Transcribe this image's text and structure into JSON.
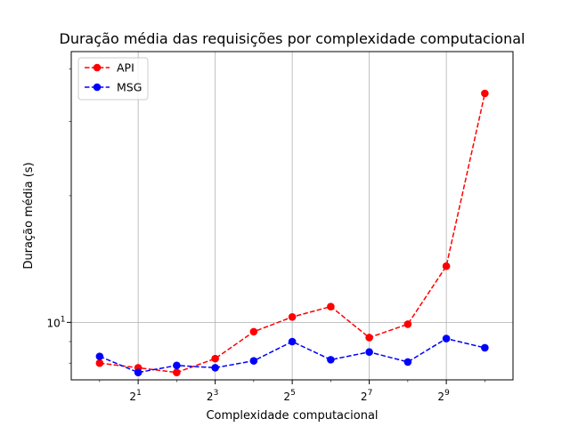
{
  "chart_data": {
    "type": "line",
    "title": "Duração média das requisições por complexidade computacional",
    "xlabel": "Complexidade computacional",
    "ylabel": "Duração média (s)",
    "x_scale": "log2",
    "y_scale": "log",
    "x": [
      1,
      2,
      4,
      8,
      16,
      32,
      64,
      128,
      256,
      512,
      1024
    ],
    "xlim": [
      0.6,
      1700
    ],
    "ylim": [
      7.3,
      44
    ],
    "x_ticks": [
      {
        "value": 2,
        "base": "2",
        "exp": "1"
      },
      {
        "value": 8,
        "base": "2",
        "exp": "3"
      },
      {
        "value": 32,
        "base": "2",
        "exp": "5"
      },
      {
        "value": 128,
        "base": "2",
        "exp": "7"
      },
      {
        "value": 512,
        "base": "2",
        "exp": "9"
      }
    ],
    "y_ticks": [
      {
        "value": 10,
        "base": "10",
        "exp": "1"
      }
    ],
    "grid": true,
    "legend": "top-left",
    "series": [
      {
        "name": "API",
        "color": "#ff0000",
        "values": [
          8.0,
          7.8,
          7.6,
          8.2,
          9.5,
          10.3,
          10.9,
          9.2,
          9.9,
          13.6,
          35.0
        ]
      },
      {
        "name": "MSG",
        "color": "#0000ff",
        "values": [
          8.3,
          7.6,
          7.9,
          7.8,
          8.1,
          9.0,
          8.15,
          8.5,
          8.05,
          9.15,
          8.7
        ]
      }
    ]
  }
}
